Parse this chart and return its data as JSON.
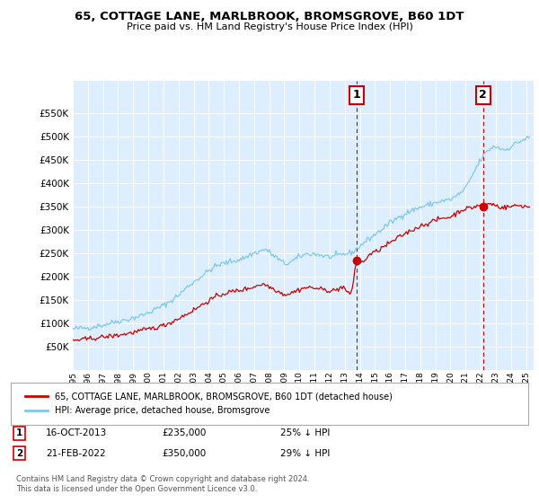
{
  "title": "65, COTTAGE LANE, MARLBROOK, BROMSGROVE, B60 1DT",
  "subtitle": "Price paid vs. HM Land Registry's House Price Index (HPI)",
  "legend_line1": "65, COTTAGE LANE, MARLBROOK, BROMSGROVE, B60 1DT (detached house)",
  "legend_line2": "HPI: Average price, detached house, Bromsgrove",
  "footnote1": "Contains HM Land Registry data © Crown copyright and database right 2024.",
  "footnote2": "This data is licensed under the Open Government Licence v3.0.",
  "annotation1": {
    "label": "1",
    "date": "16-OCT-2013",
    "price": "£235,000",
    "pct": "25% ↓ HPI"
  },
  "annotation2": {
    "label": "2",
    "date": "21-FEB-2022",
    "price": "£350,000",
    "pct": "29% ↓ HPI"
  },
  "hpi_color": "#7ec8e8",
  "price_color": "#cc0000",
  "annotation_line_color": "#cc0000",
  "background_color": "#ffffff",
  "plot_bg_color": "#ddeeff",
  "grid_color": "#ffffff",
  "sale1_x": 2013.8,
  "sale1_y": 235000,
  "sale2_x": 2022.15,
  "sale2_y": 350000,
  "xmin": 1995,
  "xmax": 2025.5,
  "ylim": [
    0,
    620000
  ],
  "yticks": [
    50000,
    100000,
    150000,
    200000,
    250000,
    300000,
    350000,
    400000,
    450000,
    500000,
    550000
  ]
}
